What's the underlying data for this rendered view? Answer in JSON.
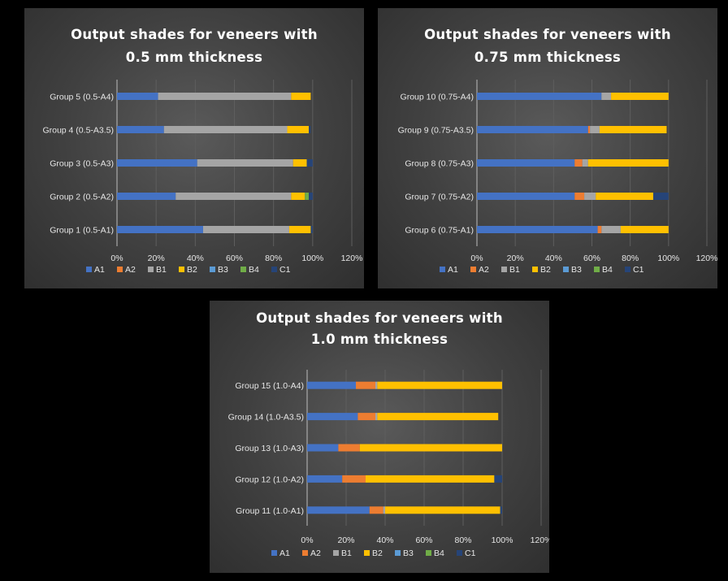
{
  "colors": {
    "A1": "#4472c4",
    "A2": "#ed7d31",
    "B1": "#a5a5a5",
    "B2": "#ffc000",
    "B3": "#5b9bd5",
    "B4": "#70ad47",
    "C1": "#264478"
  },
  "chart_data": [
    {
      "type": "bar",
      "orientation": "horizontal",
      "stacked": true,
      "title_lines": [
        "Output shades for veneers with",
        "0.5 mm thickness"
      ],
      "categories": [
        "Group 1 (0.5-A1)",
        "Group 2 (0.5-A2)",
        "Group 3 (0.5-A3)",
        "Group 4 (0.5-A3.5)",
        "Group 5 (0.5-A4)"
      ],
      "series": [
        {
          "name": "A1",
          "values": [
            44,
            30,
            41,
            24,
            21
          ]
        },
        {
          "name": "A2",
          "values": [
            0,
            0,
            0,
            0,
            0
          ]
        },
        {
          "name": "B1",
          "values": [
            44,
            59,
            49,
            63,
            68
          ]
        },
        {
          "name": "B2",
          "values": [
            11,
            7,
            7,
            11,
            10
          ]
        },
        {
          "name": "B3",
          "values": [
            0,
            0,
            0,
            0,
            0
          ]
        },
        {
          "name": "B4",
          "values": [
            0,
            2,
            0,
            0,
            0
          ]
        },
        {
          "name": "C1",
          "values": [
            1,
            2,
            3,
            1,
            0
          ]
        }
      ],
      "xlim": [
        0,
        120
      ],
      "xticks": [
        "0%",
        "20%",
        "40%",
        "60%",
        "80%",
        "100%",
        "120%"
      ],
      "legend": "bottom",
      "grid": true
    },
    {
      "type": "bar",
      "orientation": "horizontal",
      "stacked": true,
      "title_lines": [
        "Output shades for veneers with",
        "0.75 mm thickness"
      ],
      "categories": [
        "Group 6 (0.75-A1)",
        "Group 7 (0.75-A2)",
        "Group 8 (0.75-A3)",
        "Group 9 (0.75-A3.5)",
        "Group 10 (0.75-A4)"
      ],
      "series": [
        {
          "name": "A1",
          "values": [
            63,
            51,
            51,
            58,
            65
          ]
        },
        {
          "name": "A2",
          "values": [
            2,
            5,
            4,
            1,
            0
          ]
        },
        {
          "name": "B1",
          "values": [
            10,
            6,
            3,
            5,
            5
          ]
        },
        {
          "name": "B2",
          "values": [
            25,
            30,
            42,
            35,
            30
          ]
        },
        {
          "name": "B3",
          "values": [
            0,
            0,
            0,
            0,
            0
          ]
        },
        {
          "name": "B4",
          "values": [
            0,
            0,
            0,
            0,
            0
          ]
        },
        {
          "name": "C1",
          "values": [
            0,
            8,
            0,
            0,
            0
          ]
        }
      ],
      "xlim": [
        0,
        120
      ],
      "xticks": [
        "0%",
        "20%",
        "40%",
        "60%",
        "80%",
        "100%",
        "120%"
      ],
      "legend": "bottom",
      "grid": true
    },
    {
      "type": "bar",
      "orientation": "horizontal",
      "stacked": true,
      "title_lines": [
        "Output shades for veneers with",
        "1.0 mm thickness"
      ],
      "categories": [
        "Group 11 (1.0-A1)",
        "Group 12 (1.0-A2)",
        "Group 13 (1.0-A3)",
        "Group 14 (1.0-A3.5)",
        "Group 15 (1.0-A4)"
      ],
      "series": [
        {
          "name": "A1",
          "values": [
            32,
            18,
            16,
            26,
            25
          ]
        },
        {
          "name": "A2",
          "values": [
            7,
            12,
            11,
            9,
            10
          ]
        },
        {
          "name": "B1",
          "values": [
            1,
            0,
            0,
            1,
            1
          ]
        },
        {
          "name": "B2",
          "values": [
            59,
            66,
            73,
            62,
            64
          ]
        },
        {
          "name": "B3",
          "values": [
            0,
            0,
            0,
            0,
            0
          ]
        },
        {
          "name": "B4",
          "values": [
            0,
            0,
            0,
            0,
            0
          ]
        },
        {
          "name": "C1",
          "values": [
            1,
            4,
            0,
            0,
            0
          ]
        }
      ],
      "xlim": [
        0,
        120
      ],
      "xticks": [
        "0%",
        "20%",
        "40%",
        "60%",
        "80%",
        "100%",
        "120%"
      ],
      "legend": "bottom",
      "grid": true
    }
  ]
}
